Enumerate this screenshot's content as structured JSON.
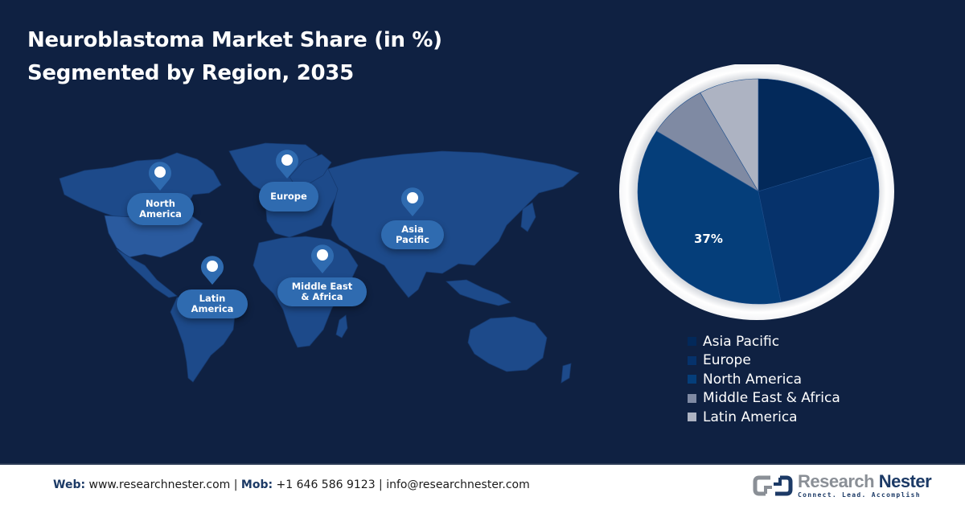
{
  "title": {
    "line1": "Neuroblastoma Market Share (in %)",
    "line2": "Segmented by Region, 2035"
  },
  "map": {
    "markers": [
      {
        "label_line1": "North",
        "label_line2": "America",
        "icon": "location-pin-icon"
      },
      {
        "label_line1": "Europe",
        "label_line2": "",
        "icon": "location-pin-icon"
      },
      {
        "label_line1": "Asia",
        "label_line2": "Pacific",
        "icon": "location-pin-icon"
      },
      {
        "label_line1": "Middle East",
        "label_line2": "& Africa",
        "icon": "location-pin-icon"
      },
      {
        "label_line1": "Latin",
        "label_line2": "America",
        "icon": "location-pin-icon"
      }
    ]
  },
  "chart_data": {
    "type": "pie",
    "title": "Neuroblastoma Market Share (in %) Segmented by Region, 2035",
    "categories": [
      "Asia Pacific",
      "Europe",
      "North America",
      "Middle East & Africa",
      "Latin America"
    ],
    "values": [
      20,
      27,
      37,
      8,
      8
    ],
    "colors": [
      "#03295a",
      "#06326b",
      "#053e7a",
      "#7f8aa3",
      "#adb3c2"
    ],
    "data_labels": [
      {
        "category": "North America",
        "text": "37%"
      }
    ],
    "start_angle": "12 o'clock, clockwise",
    "legend_position": "bottom-right"
  },
  "legend": {
    "items": [
      {
        "label": "Asia Pacific",
        "color": "#03295a"
      },
      {
        "label": "Europe",
        "color": "#06326b"
      },
      {
        "label": "North America",
        "color": "#053e7a"
      },
      {
        "label": "Middle East & Africa",
        "color": "#7f8aa3"
      },
      {
        "label": "Latin America",
        "color": "#adb3c2"
      }
    ]
  },
  "pie_label": "37%",
  "footer": {
    "web_label": "Web:",
    "web_value": " www.researchnester.com | ",
    "mob_label": "Mob:",
    "mob_value": " +1 646 586 9123 | info@researchnester.com",
    "logo_name_1": "Research",
    "logo_name_2": " Nester",
    "logo_tagline": "Connect. Lead. Accomplish"
  },
  "colors": {
    "background": "#0f2142",
    "pill": "#2f6bb0",
    "land": "#1d4a8a"
  }
}
